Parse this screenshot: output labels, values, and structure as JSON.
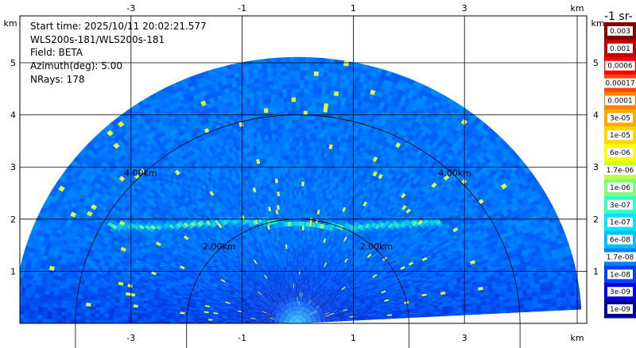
{
  "chart_data": {
    "type": "heatmap",
    "title": "",
    "info_lines": [
      "Start time: 2025/10/11 20:02:21.577",
      "WLS200s-181/WLS200s-181",
      "Field: BETA",
      "Azimuth(deg): 5.00",
      "NRays: 178"
    ],
    "x_unit": "km",
    "y_unit": "km",
    "x_ticks": [
      -3,
      -1,
      1,
      3
    ],
    "y_ticks": [
      1,
      2,
      3,
      4,
      5
    ],
    "xlim": [
      -5.0,
      5.2
    ],
    "ylim": [
      0,
      5.9
    ],
    "grid": true,
    "range_rings": [
      {
        "label": "2.00km",
        "radius_km": 2
      },
      {
        "label": "4.00km",
        "radius_km": 4
      }
    ],
    "sector": {
      "radius_km": 5.1,
      "start_angle_deg": 3,
      "end_angle_deg": 180
    },
    "features": [
      {
        "description": "aerosol layer",
        "height_km": 1.9
      },
      {
        "description": "near-field high return",
        "height_km": 0
      }
    ],
    "colorbar": {
      "title": "-1 sr-",
      "scale": "log",
      "labels": [
        "0.003",
        "0.001",
        "0.0006",
        "0.00017",
        "0.0001",
        "3e-05",
        "1e-05",
        "6e-06",
        "1.7e-06",
        "1e-06",
        "3e-07",
        "1e-07",
        "6e-08",
        "1.7e-08",
        "1e-08",
        "3e-09",
        "1e-09"
      ],
      "colors": [
        "#800000",
        "#c00000",
        "#ff0000",
        "#ff4500",
        "#ff7f00",
        "#ffaa00",
        "#ffd700",
        "#ffff00",
        "#c8ff37",
        "#7fff7f",
        "#37ffc8",
        "#00e5ff",
        "#00bfff",
        "#0080ff",
        "#0040ff",
        "#0000e0",
        "#000090"
      ]
    }
  }
}
